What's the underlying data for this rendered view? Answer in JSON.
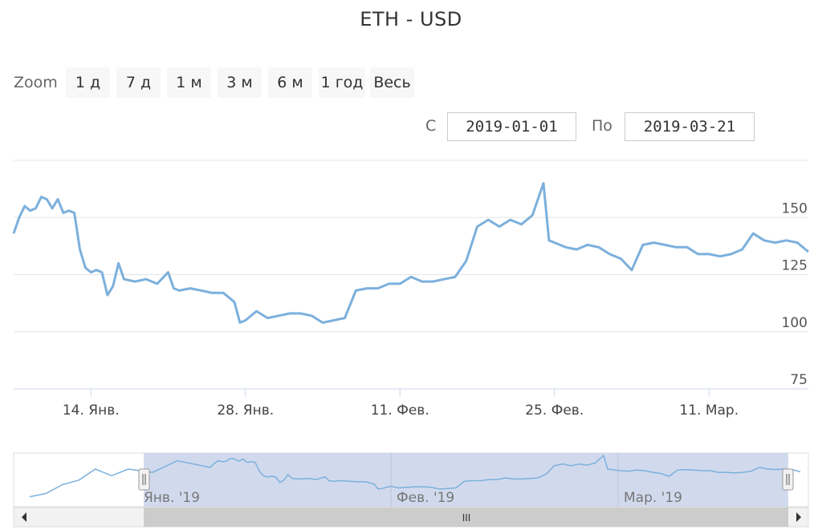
{
  "title": "ETH - USD",
  "range_selector": {
    "zoom_label": "Zoom",
    "buttons": [
      "1 д",
      "7 д",
      "1 м",
      "3 м",
      "6 м",
      "1 год",
      "Весь"
    ],
    "from_label": "С",
    "from_value": "2019-01-01",
    "to_label": "По",
    "to_value": "2019-03-21"
  },
  "navigator": {
    "labels": [
      "Янв. '19",
      "Фев. '19",
      "Мар. '19"
    ],
    "scrollbar_handle": "III"
  },
  "colors": {
    "series": "#7cb0dc",
    "grid": "#e6e6e6",
    "navigator_mask": "#ccd6eb"
  },
  "chart_data": {
    "type": "line",
    "title": "ETH - USD",
    "xlabel": "",
    "ylabel": "",
    "x_range": [
      "2019-01-07",
      "2019-03-20"
    ],
    "ylim": [
      75,
      175
    ],
    "y_ticks": [
      75,
      100,
      125,
      150
    ],
    "x_tick_labels": [
      {
        "date": "2019-01-14",
        "label": "14. Янв."
      },
      {
        "date": "2019-01-28",
        "label": "28. Янв."
      },
      {
        "date": "2019-02-11",
        "label": "11. Фев."
      },
      {
        "date": "2019-02-25",
        "label": "25. Фев."
      },
      {
        "date": "2019-03-11",
        "label": "11. Мар."
      }
    ],
    "grid": true,
    "series": [
      {
        "points": [
          [
            "2019-01-07",
            143
          ],
          [
            "2019-01-07T12:00",
            150
          ],
          [
            "2019-01-08",
            155
          ],
          [
            "2019-01-08T12:00",
            153
          ],
          [
            "2019-01-09",
            154
          ],
          [
            "2019-01-09T12:00",
            159
          ],
          [
            "2019-01-10",
            158
          ],
          [
            "2019-01-10T12:00",
            154
          ],
          [
            "2019-01-11",
            158
          ],
          [
            "2019-01-11T12:00",
            152
          ],
          [
            "2019-01-12",
            153
          ],
          [
            "2019-01-12T12:00",
            152
          ],
          [
            "2019-01-13",
            136
          ],
          [
            "2019-01-13T12:00",
            128
          ],
          [
            "2019-01-14",
            126
          ],
          [
            "2019-01-14T12:00",
            127
          ],
          [
            "2019-01-15",
            126
          ],
          [
            "2019-01-15T12:00",
            116
          ],
          [
            "2019-01-16",
            120
          ],
          [
            "2019-01-16T12:00",
            130
          ],
          [
            "2019-01-17",
            123
          ],
          [
            "2019-01-18",
            122
          ],
          [
            "2019-01-19",
            123
          ],
          [
            "2019-01-20",
            121
          ],
          [
            "2019-01-21",
            126
          ],
          [
            "2019-01-21T12:00",
            119
          ],
          [
            "2019-01-22",
            118
          ],
          [
            "2019-01-23",
            119
          ],
          [
            "2019-01-24",
            118
          ],
          [
            "2019-01-25",
            117
          ],
          [
            "2019-01-26",
            117
          ],
          [
            "2019-01-27",
            113
          ],
          [
            "2019-01-27T12:00",
            104
          ],
          [
            "2019-01-28",
            105
          ],
          [
            "2019-01-29",
            109
          ],
          [
            "2019-01-30",
            106
          ],
          [
            "2019-01-31",
            107
          ],
          [
            "2019-02-01",
            108
          ],
          [
            "2019-02-02",
            108
          ],
          [
            "2019-02-03",
            107
          ],
          [
            "2019-02-04",
            104
          ],
          [
            "2019-02-05",
            105
          ],
          [
            "2019-02-06",
            106
          ],
          [
            "2019-02-07",
            118
          ],
          [
            "2019-02-08",
            119
          ],
          [
            "2019-02-09",
            119
          ],
          [
            "2019-02-10",
            121
          ],
          [
            "2019-02-11",
            121
          ],
          [
            "2019-02-12",
            124
          ],
          [
            "2019-02-13",
            122
          ],
          [
            "2019-02-14",
            122
          ],
          [
            "2019-02-15",
            123
          ],
          [
            "2019-02-16",
            124
          ],
          [
            "2019-02-17",
            131
          ],
          [
            "2019-02-18",
            146
          ],
          [
            "2019-02-19",
            149
          ],
          [
            "2019-02-20",
            146
          ],
          [
            "2019-02-21",
            149
          ],
          [
            "2019-02-22",
            147
          ],
          [
            "2019-02-23",
            151
          ],
          [
            "2019-02-24",
            165
          ],
          [
            "2019-02-24T12:00",
            140
          ],
          [
            "2019-02-25",
            139
          ],
          [
            "2019-02-26",
            137
          ],
          [
            "2019-02-27",
            136
          ],
          [
            "2019-02-28",
            138
          ],
          [
            "2019-03-01",
            137
          ],
          [
            "2019-03-02",
            134
          ],
          [
            "2019-03-03",
            132
          ],
          [
            "2019-03-04",
            127
          ],
          [
            "2019-03-05",
            138
          ],
          [
            "2019-03-06",
            139
          ],
          [
            "2019-03-07",
            138
          ],
          [
            "2019-03-08",
            137
          ],
          [
            "2019-03-09",
            137
          ],
          [
            "2019-03-10",
            134
          ],
          [
            "2019-03-11",
            134
          ],
          [
            "2019-03-12",
            133
          ],
          [
            "2019-03-13",
            134
          ],
          [
            "2019-03-14",
            136
          ],
          [
            "2019-03-15",
            143
          ],
          [
            "2019-03-16",
            140
          ],
          [
            "2019-03-17",
            139
          ],
          [
            "2019-03-18",
            140
          ],
          [
            "2019-03-19",
            139
          ],
          [
            "2019-03-20",
            135
          ]
        ]
      }
    ]
  }
}
